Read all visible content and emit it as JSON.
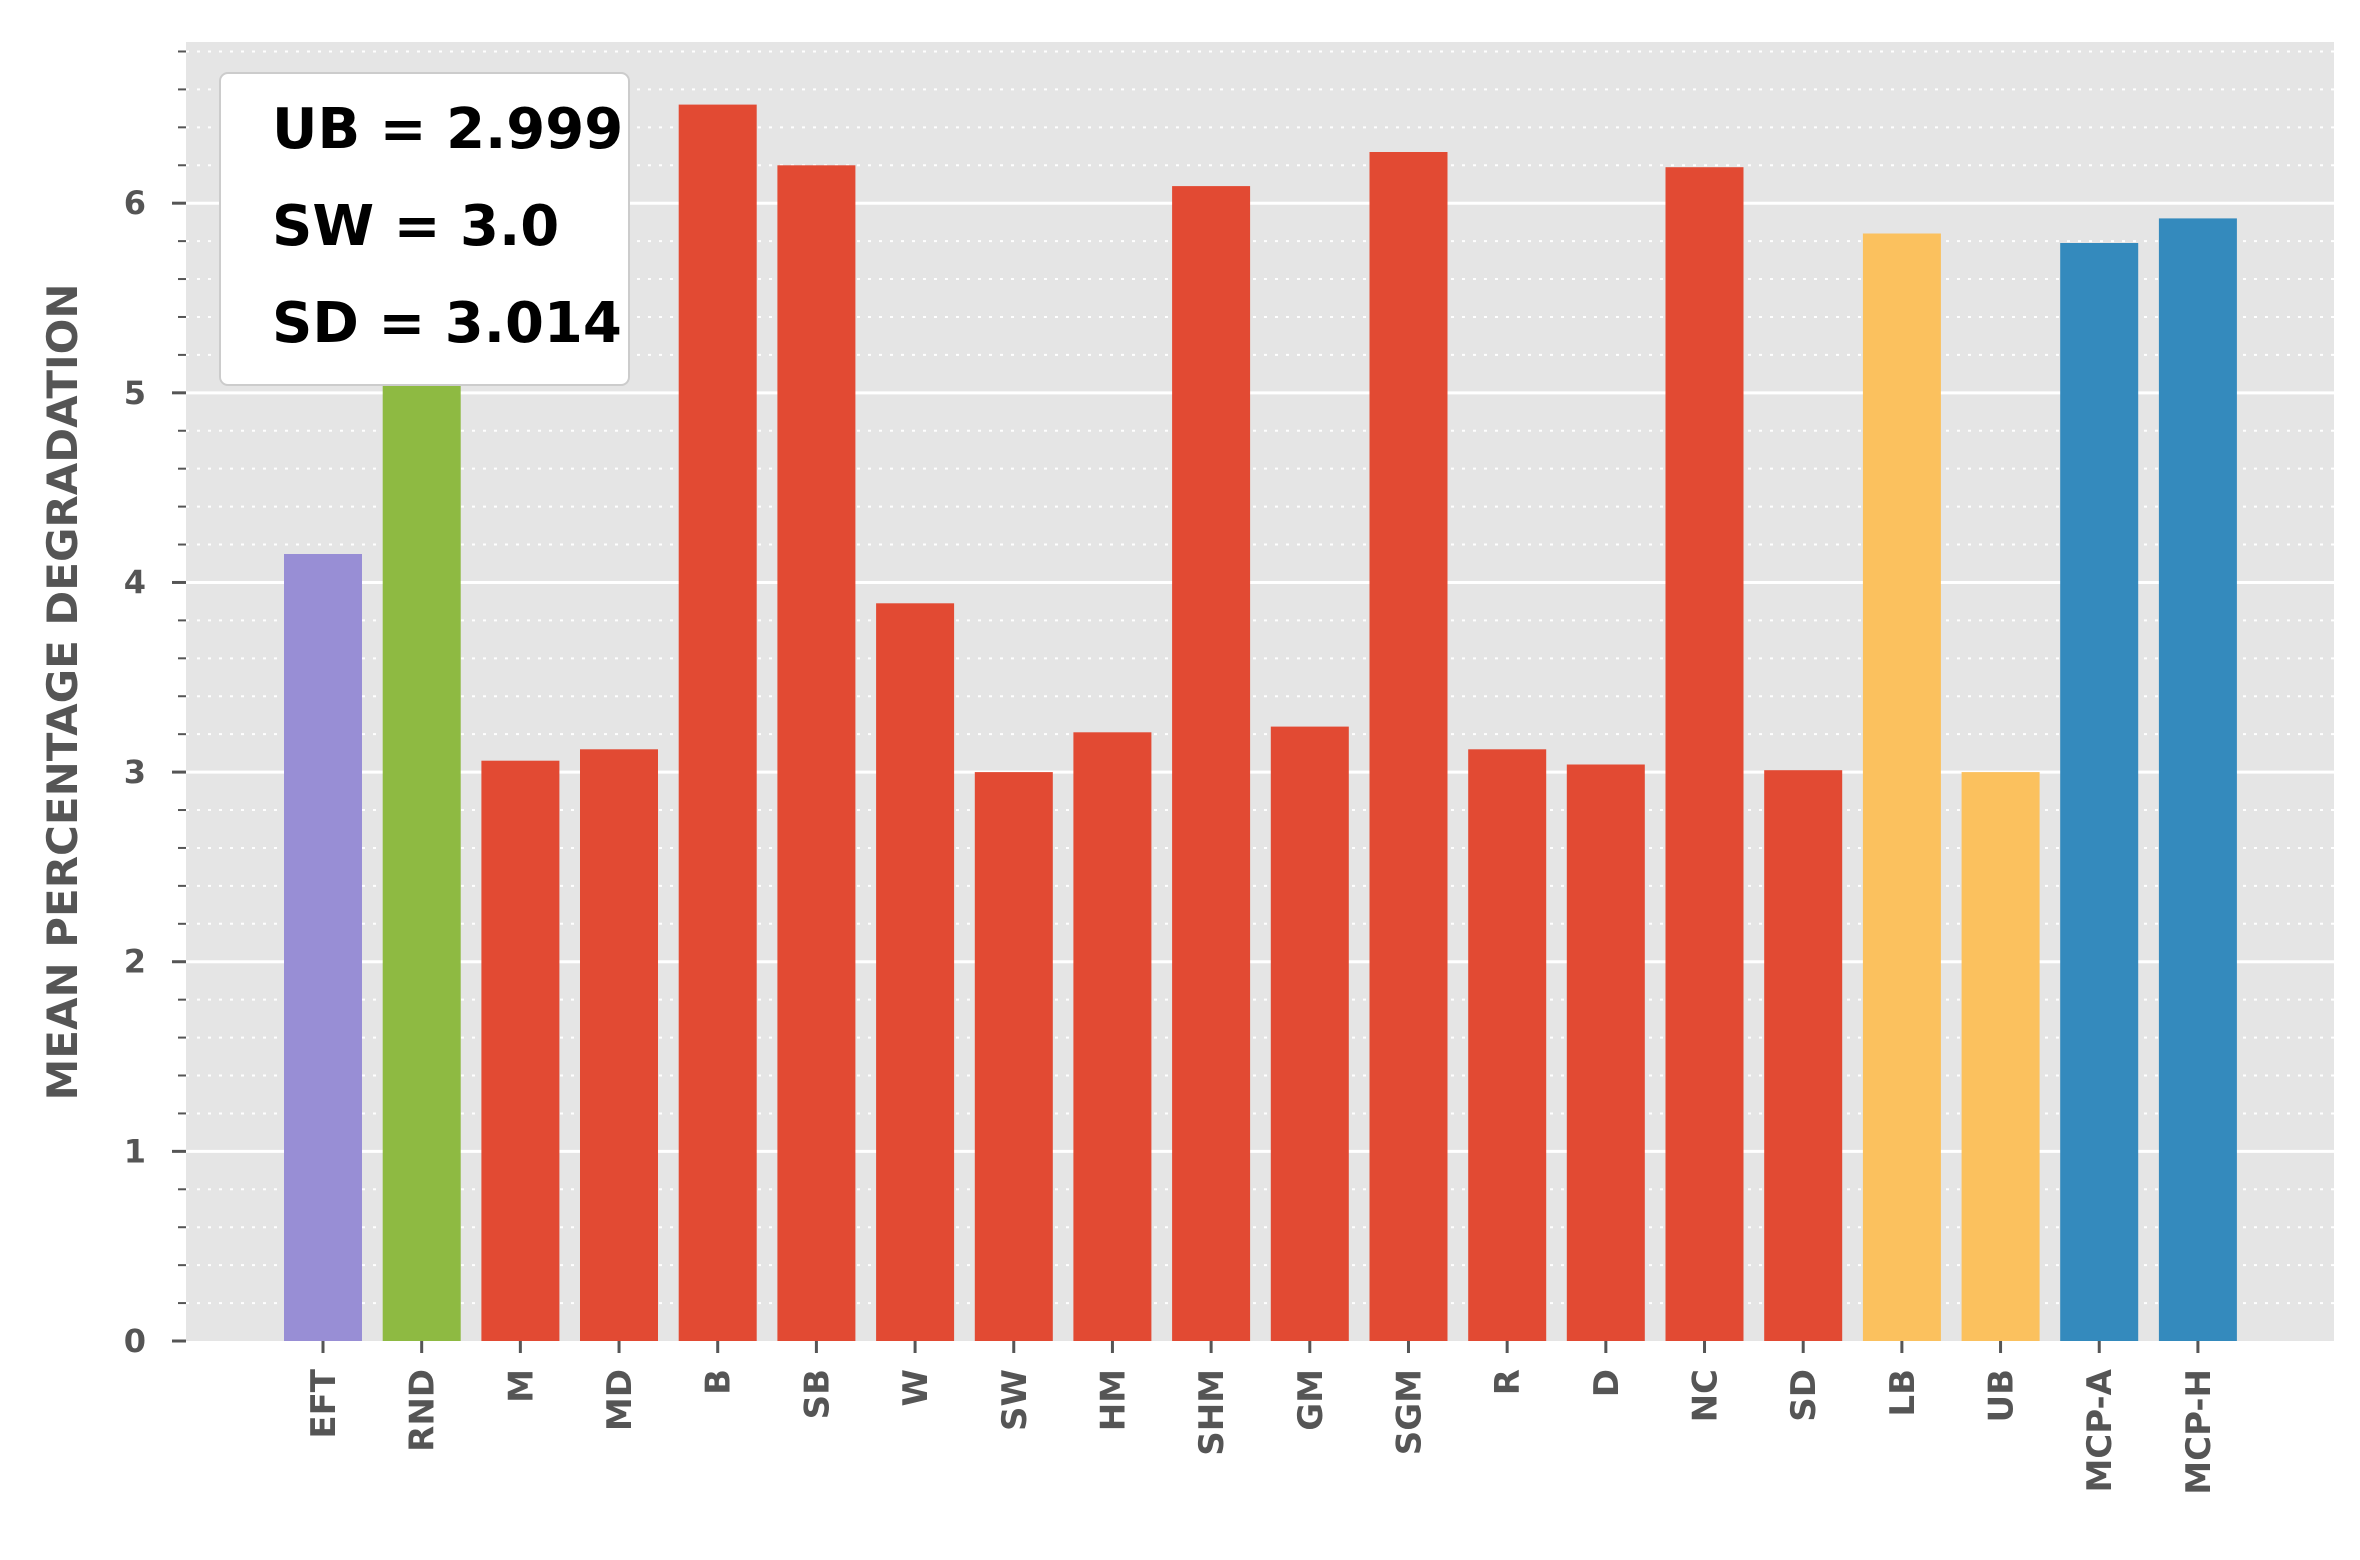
{
  "chart_data": {
    "type": "bar",
    "ylabel": "MEAN PERCENTAGE DEGRADATION",
    "xlabel": "",
    "ylim": [
      0,
      6.85
    ],
    "yticks": [
      0,
      1,
      2,
      3,
      4,
      5,
      6
    ],
    "ytick_labels": [
      "0",
      "1",
      "2",
      "3",
      "4",
      "5",
      "6"
    ],
    "grid": true,
    "background": "#e5e5e5",
    "categories": [
      "EFT",
      "RND",
      "M",
      "MD",
      "B",
      "SB",
      "W",
      "SW",
      "HM",
      "SHM",
      "GM",
      "SGM",
      "R",
      "D",
      "NC",
      "SD",
      "LB",
      "UB",
      "MCP-A",
      "MCP-H"
    ],
    "values": [
      4.15,
      5.55,
      3.06,
      3.12,
      6.52,
      6.2,
      3.89,
      3.0,
      3.21,
      6.09,
      3.24,
      6.27,
      3.12,
      3.04,
      6.19,
      3.01,
      5.84,
      3.0,
      5.79,
      5.92
    ],
    "colors": [
      "#988ed5",
      "#8eba42",
      "#e24a33",
      "#e24a33",
      "#e24a33",
      "#e24a33",
      "#e24a33",
      "#e24a33",
      "#e24a33",
      "#e24a33",
      "#e24a33",
      "#e24a33",
      "#e24a33",
      "#e24a33",
      "#e24a33",
      "#e24a33",
      "#fbc15e",
      "#fbc15e",
      "#348abd",
      "#348abd"
    ],
    "legend_placement": "top-left",
    "annotations": [
      "UB = 2.999",
      "SW = 3.0",
      "SD = 3.014"
    ]
  }
}
